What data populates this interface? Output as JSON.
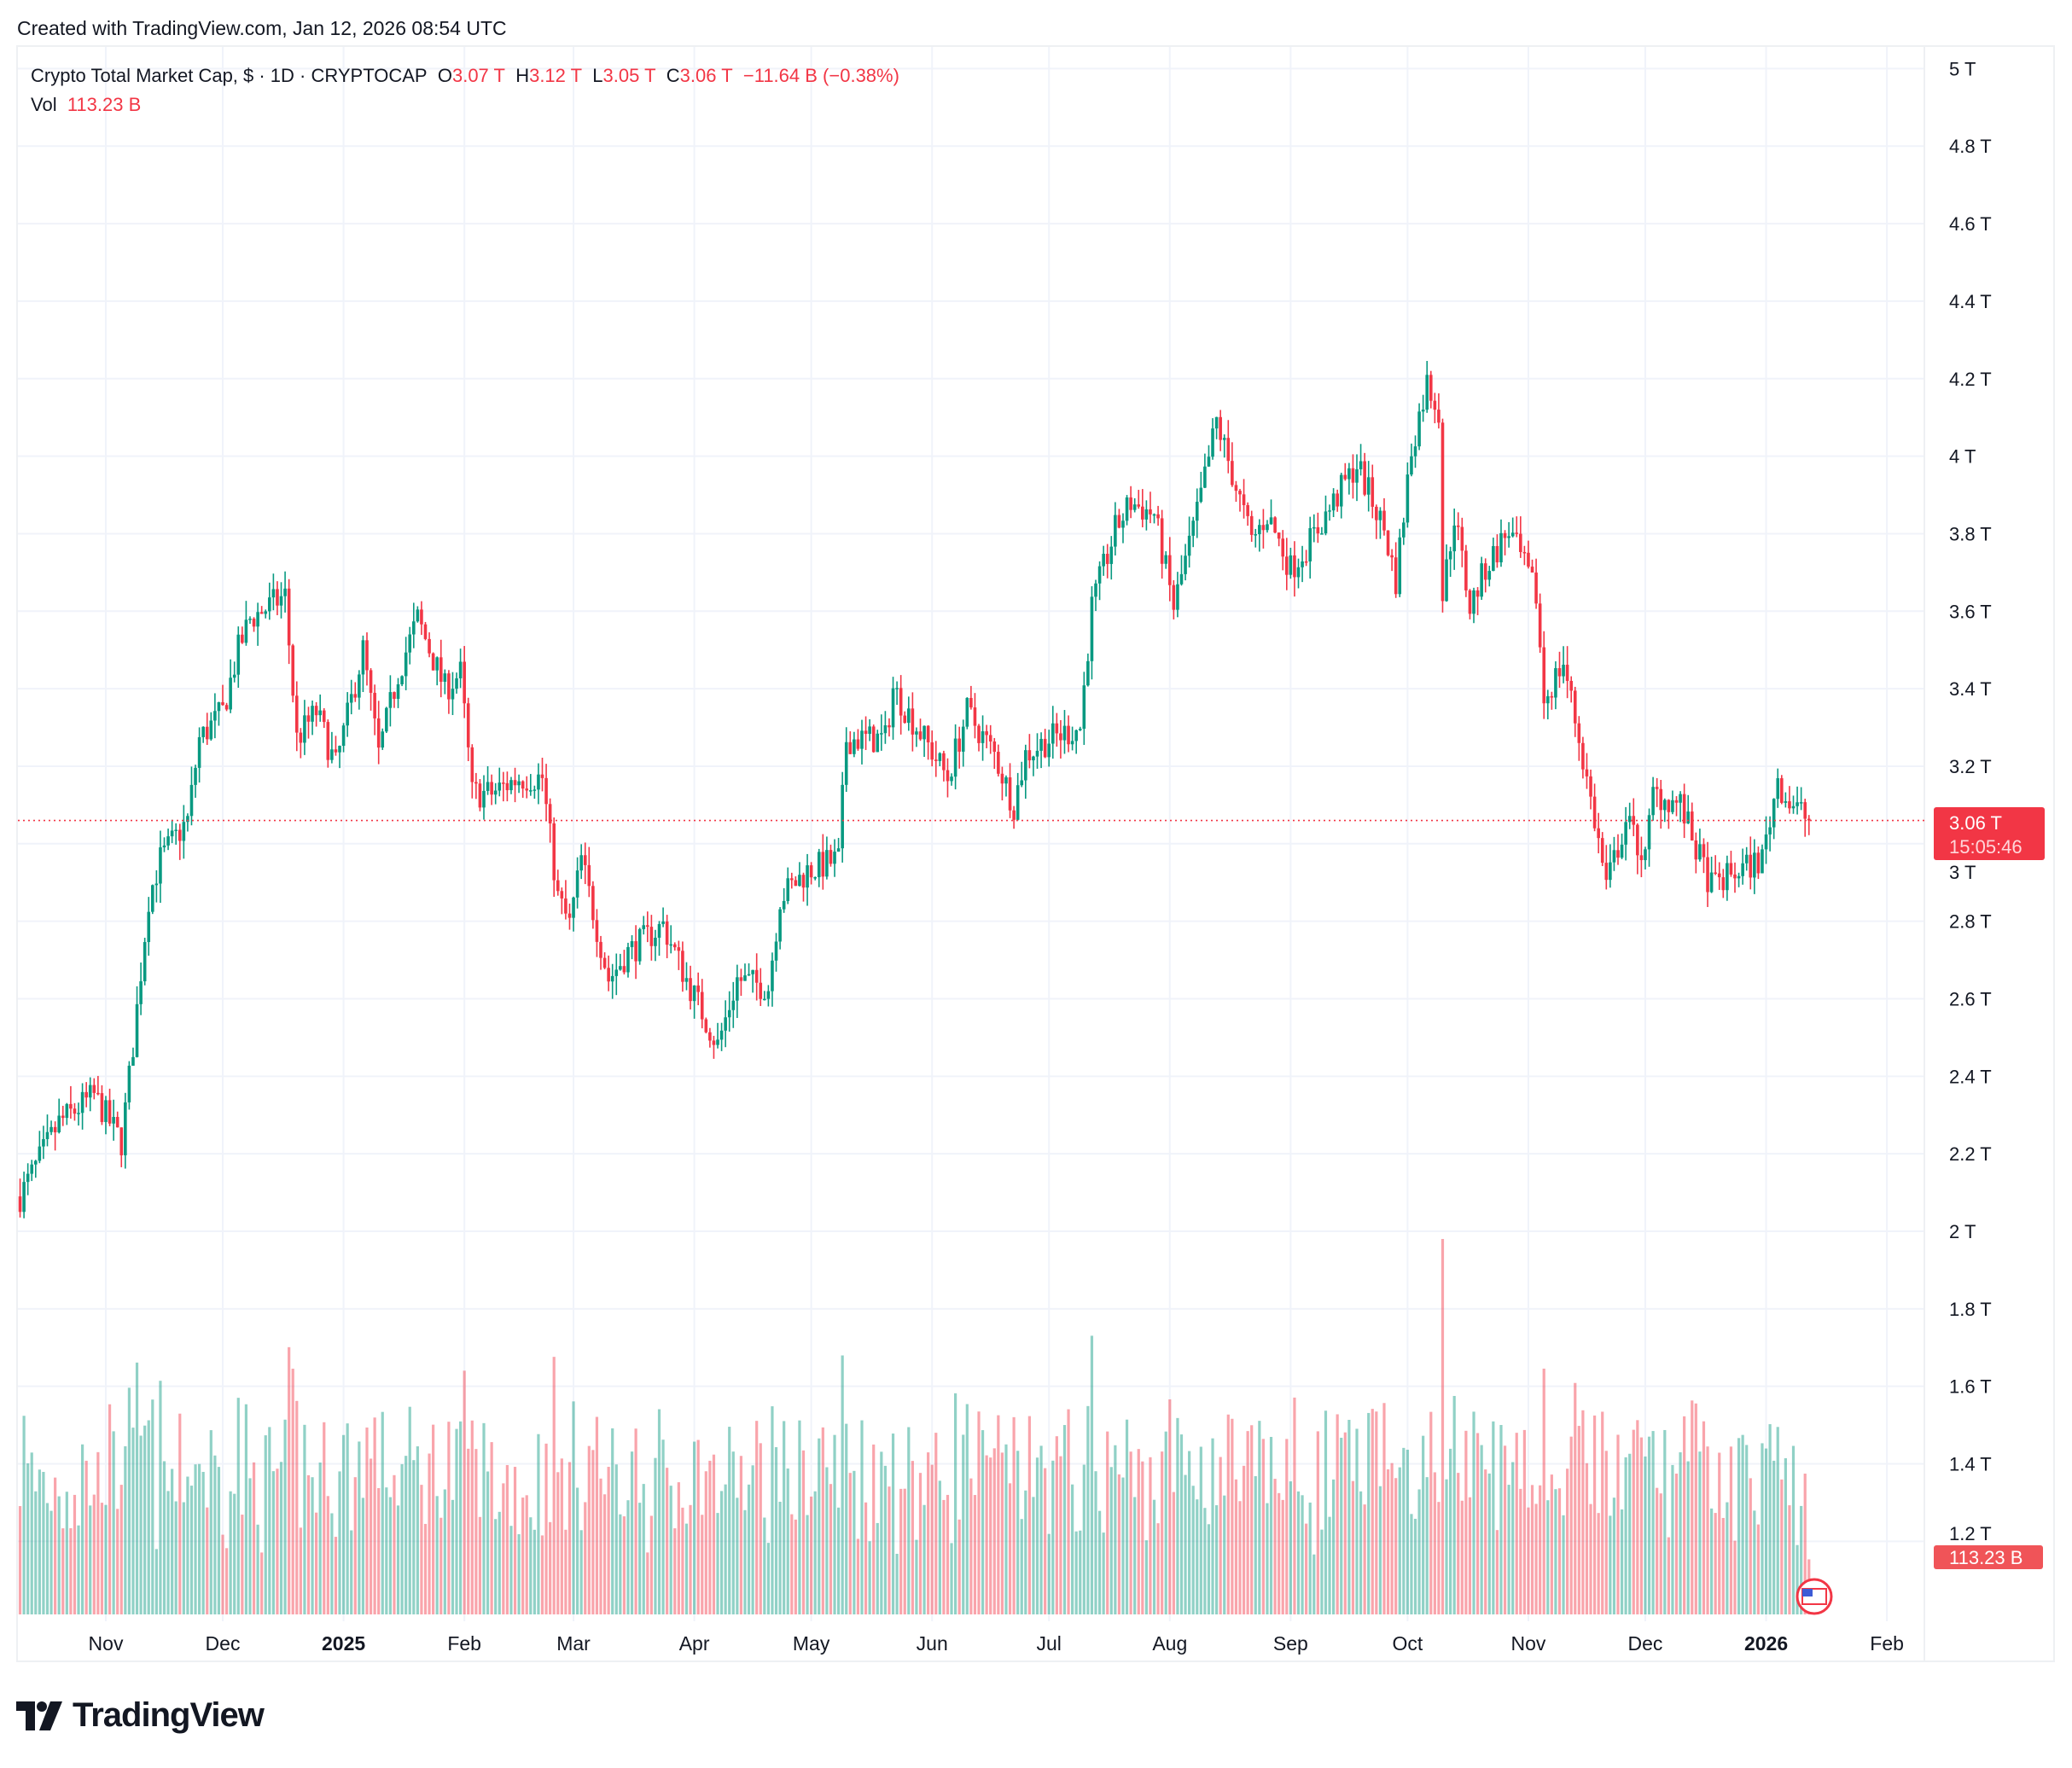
{
  "credit": "Created with TradingView.com, Jan 12, 2026 08:54 UTC",
  "legend": {
    "symbol": "Crypto Total Market Cap, $ · 1D · CRYPTOCAP",
    "open_label": "O",
    "open": "3.07 T",
    "high_label": "H",
    "high": "3.12 T",
    "low_label": "L",
    "low": "3.05 T",
    "close_label": "C",
    "close": "3.06 T",
    "change": "−11.64 B (−0.38%)",
    "vol_label": "Vol",
    "vol": "113.23 B"
  },
  "price_tag": {
    "value": "3.06 T",
    "countdown": "15:05:46"
  },
  "vol_tag": "113.23 B",
  "logo": "TradingView",
  "colors": {
    "up": "#089981",
    "down": "#f23645",
    "grid": "#f0f3fa"
  },
  "chart_data": {
    "type": "candlestick",
    "title": "Crypto Total Market Cap, $ · 1D · CRYPTOCAP",
    "y_ticks": [
      "5 T",
      "4.8 T",
      "4.6 T",
      "4.4 T",
      "4.2 T",
      "4 T",
      "3.8 T",
      "3.6 T",
      "3.4 T",
      "3.2 T",
      "3 T",
      "2.8 T",
      "2.6 T",
      "2.4 T",
      "2.2 T",
      "2 T",
      "1.8 T",
      "1.6 T",
      "1.4 T",
      "1.2 T"
    ],
    "y_tick_values": [
      5,
      4.8,
      4.6,
      4.4,
      4.2,
      4,
      3.8,
      3.6,
      3.4,
      3.2,
      3,
      2.8,
      2.6,
      2.4,
      2.2,
      2,
      1.8,
      1.6,
      1.4,
      1.2
    ],
    "x_ticks": [
      {
        "label": "Nov",
        "date": "2024-11-01"
      },
      {
        "label": "Dec",
        "date": "2024-12-01"
      },
      {
        "label": "2025",
        "date": "2025-01-01",
        "bold": true
      },
      {
        "label": "Feb",
        "date": "2025-02-01"
      },
      {
        "label": "Mar",
        "date": "2025-03-01"
      },
      {
        "label": "Apr",
        "date": "2025-04-01"
      },
      {
        "label": "May",
        "date": "2025-05-01"
      },
      {
        "label": "Jun",
        "date": "2025-06-01"
      },
      {
        "label": "Jul",
        "date": "2025-07-01"
      },
      {
        "label": "Aug",
        "date": "2025-08-01"
      },
      {
        "label": "Sep",
        "date": "2025-09-01"
      },
      {
        "label": "Oct",
        "date": "2025-10-01"
      },
      {
        "label": "Nov",
        "date": "2025-11-01"
      },
      {
        "label": "Dec",
        "date": "2025-12-01"
      },
      {
        "label": "2026",
        "date": "2026-01-01",
        "bold": true
      },
      {
        "label": "Feb",
        "date": "2026-02-01"
      }
    ],
    "y_unit": "T (trillion USD)",
    "last_close": 3.06,
    "close_anchors": [
      [
        "2024-10-10",
        2.09
      ],
      [
        "2024-10-20",
        2.28
      ],
      [
        "2024-10-29",
        2.35
      ],
      [
        "2024-11-05",
        2.23
      ],
      [
        "2024-11-08",
        2.48
      ],
      [
        "2024-11-12",
        2.86
      ],
      [
        "2024-11-15",
        2.96
      ],
      [
        "2024-11-22",
        3.06
      ],
      [
        "2024-11-25",
        3.27
      ],
      [
        "2024-12-01",
        3.34
      ],
      [
        "2024-12-05",
        3.5
      ],
      [
        "2024-12-08",
        3.58
      ],
      [
        "2024-12-17",
        3.64
      ],
      [
        "2024-12-20",
        3.27
      ],
      [
        "2024-12-25",
        3.34
      ],
      [
        "2024-12-30",
        3.2
      ],
      [
        "2025-01-03",
        3.37
      ],
      [
        "2025-01-06",
        3.5
      ],
      [
        "2025-01-10",
        3.23
      ],
      [
        "2025-01-15",
        3.44
      ],
      [
        "2025-01-20",
        3.58
      ],
      [
        "2025-01-27",
        3.4
      ],
      [
        "2025-01-31",
        3.44
      ],
      [
        "2025-02-03",
        3.13
      ],
      [
        "2025-02-08",
        3.13
      ],
      [
        "2025-02-15",
        3.17
      ],
      [
        "2025-02-21",
        3.17
      ],
      [
        "2025-02-25",
        2.86
      ],
      [
        "2025-02-28",
        2.79
      ],
      [
        "2025-03-03",
        2.96
      ],
      [
        "2025-03-10",
        2.65
      ],
      [
        "2025-03-15",
        2.72
      ],
      [
        "2025-03-24",
        2.79
      ],
      [
        "2025-03-30",
        2.65
      ],
      [
        "2025-04-07",
        2.48
      ],
      [
        "2025-04-12",
        2.65
      ],
      [
        "2025-04-20",
        2.63
      ],
      [
        "2025-04-23",
        2.86
      ],
      [
        "2025-04-30",
        2.93
      ],
      [
        "2025-05-08",
        2.96
      ],
      [
        "2025-05-10",
        3.27
      ],
      [
        "2025-05-20",
        3.27
      ],
      [
        "2025-05-22",
        3.4
      ],
      [
        "2025-05-30",
        3.27
      ],
      [
        "2025-06-05",
        3.17
      ],
      [
        "2025-06-10",
        3.34
      ],
      [
        "2025-06-17",
        3.23
      ],
      [
        "2025-06-22",
        3.1
      ],
      [
        "2025-06-25",
        3.23
      ],
      [
        "2025-07-01",
        3.27
      ],
      [
        "2025-07-09",
        3.3
      ],
      [
        "2025-07-12",
        3.61
      ],
      [
        "2025-07-15",
        3.71
      ],
      [
        "2025-07-18",
        3.81
      ],
      [
        "2025-07-22",
        3.88
      ],
      [
        "2025-07-28",
        3.85
      ],
      [
        "2025-08-02",
        3.61
      ],
      [
        "2025-08-08",
        3.85
      ],
      [
        "2025-08-13",
        4.09
      ],
      [
        "2025-08-18",
        3.92
      ],
      [
        "2025-08-22",
        3.78
      ],
      [
        "2025-08-26",
        3.85
      ],
      [
        "2025-09-01",
        3.71
      ],
      [
        "2025-09-06",
        3.78
      ],
      [
        "2025-09-12",
        3.88
      ],
      [
        "2025-09-18",
        3.98
      ],
      [
        "2025-09-25",
        3.81
      ],
      [
        "2025-09-28",
        3.68
      ],
      [
        "2025-10-02",
        4.02
      ],
      [
        "2025-10-06",
        4.19
      ],
      [
        "2025-10-09",
        4.12
      ],
      [
        "2025-10-10",
        3.64
      ],
      [
        "2025-10-13",
        3.85
      ],
      [
        "2025-10-17",
        3.61
      ],
      [
        "2025-10-21",
        3.71
      ],
      [
        "2025-10-27",
        3.81
      ],
      [
        "2025-11-03",
        3.64
      ],
      [
        "2025-11-05",
        3.37
      ],
      [
        "2025-11-10",
        3.47
      ],
      [
        "2025-11-14",
        3.27
      ],
      [
        "2025-11-18",
        3.06
      ],
      [
        "2025-11-21",
        2.89
      ],
      [
        "2025-11-26",
        3.06
      ],
      [
        "2025-12-01",
        2.96
      ],
      [
        "2025-12-03",
        3.13
      ],
      [
        "2025-12-10",
        3.1
      ],
      [
        "2025-12-15",
        2.96
      ],
      [
        "2025-12-18",
        2.89
      ],
      [
        "2025-12-25",
        2.93
      ],
      [
        "2025-12-31",
        2.96
      ],
      [
        "2026-01-04",
        3.17
      ],
      [
        "2026-01-06",
        3.12
      ],
      [
        "2026-01-12",
        3.06
      ]
    ]
  }
}
